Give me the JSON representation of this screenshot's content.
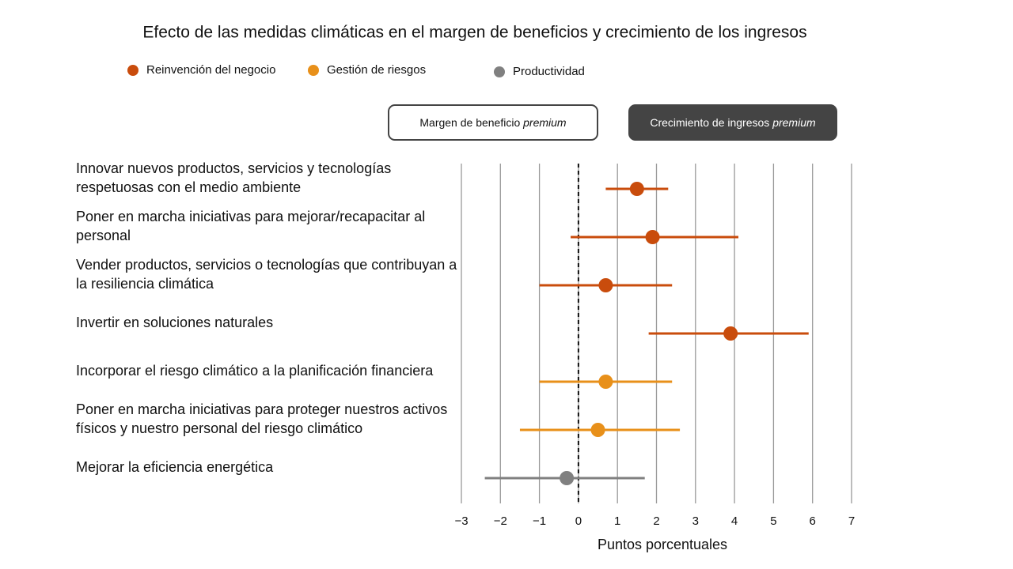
{
  "chart_data": {
    "type": "dot-interval",
    "title": "Efecto de las medidas climáticas en el margen de beneficios y crecimiento de los ingresos",
    "toggles": [
      {
        "text": "Margen de beneficio",
        "emphasis": "premium",
        "active": false
      },
      {
        "text": "Crecimiento de ingresos",
        "emphasis": "premium",
        "active": true
      }
    ],
    "categories": [
      "Innovar nuevos productos, servicios y tecnologías respetuosas con el medio ambiente",
      "Poner en marcha iniciativas para mejorar/recapacitar al personal",
      "Vender productos, servicios o tecnologías que contribuyan a la resiliencia climática",
      "Invertir en soluciones naturales",
      "Incorporar el riesgo climático a la planificación financiera",
      "Poner en marcha iniciativas para proteger nuestros activos físicos y nuestro personal del riesgo climático",
      "Mejorar la eficiencia energética"
    ],
    "series": [
      {
        "name": "Reinvención del negocio",
        "color": "#c94c0c",
        "values": [
          1.5,
          1.9,
          0.7,
          3.9,
          null,
          null,
          null
        ],
        "low": [
          0.7,
          -0.2,
          -1.0,
          1.8,
          null,
          null,
          null
        ],
        "high": [
          2.3,
          4.1,
          2.4,
          5.9,
          null,
          null,
          null
        ]
      },
      {
        "name": "Gestión de riesgos",
        "color": "#e8901a",
        "values": [
          null,
          null,
          null,
          null,
          0.7,
          0.5,
          null
        ],
        "low": [
          null,
          null,
          null,
          null,
          -1.0,
          -1.5,
          null
        ],
        "high": [
          null,
          null,
          null,
          null,
          2.4,
          2.6,
          null
        ]
      },
      {
        "name": "Productividad",
        "color": "#808080",
        "values": [
          null,
          null,
          null,
          null,
          null,
          null,
          -0.3
        ],
        "low": [
          null,
          null,
          null,
          null,
          null,
          null,
          -2.4
        ],
        "high": [
          null,
          null,
          null,
          null,
          null,
          null,
          1.7
        ]
      }
    ],
    "xlabel": "Puntos porcentuales",
    "xlim": [
      -3,
      7
    ],
    "xticks": [
      {
        "value": -3,
        "label": "−3"
      },
      {
        "value": -2,
        "label": "−2"
      },
      {
        "value": -1,
        "label": "−1"
      },
      0,
      1,
      2,
      3,
      4,
      5,
      6,
      7
    ],
    "grid": true,
    "reference_line": 0
  }
}
